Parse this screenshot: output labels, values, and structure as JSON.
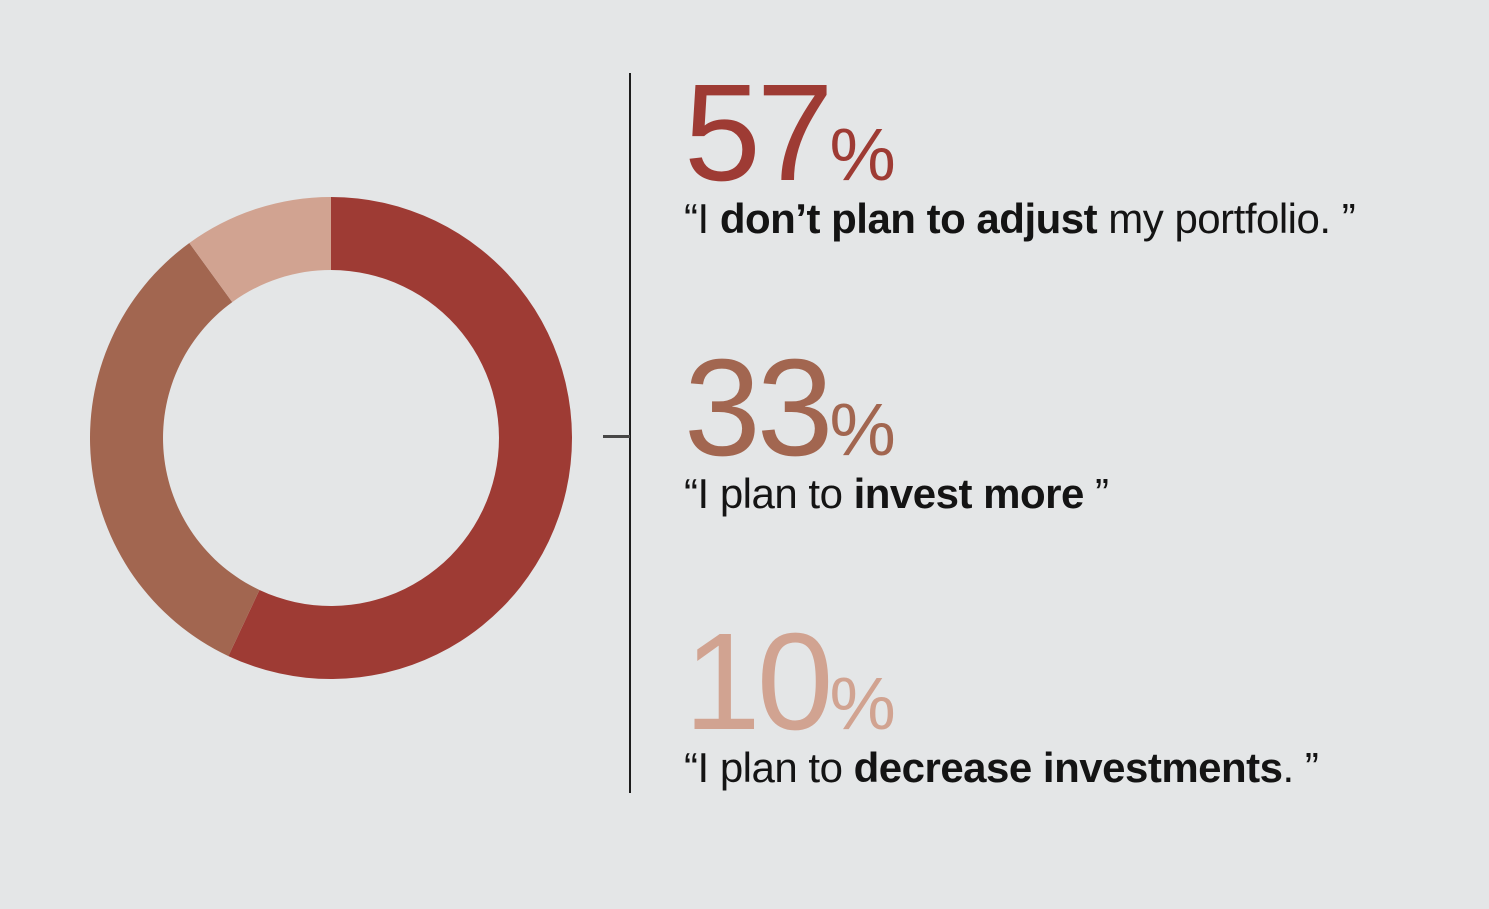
{
  "background_color": "#e4e6e7",
  "divider": {
    "line_color": "#1d1d1d",
    "tick_color": "#474747"
  },
  "chart_data": {
    "type": "pie",
    "subtype": "donut",
    "values": [
      57,
      33,
      10
    ],
    "labels": [
      "“I don’t plan to adjust my portfolio. ”",
      "“I plan to invest more ”",
      "“I plan to decrease investments. ”"
    ],
    "colors": [
      "#9e3b34",
      "#a26650",
      "#d1a391"
    ],
    "start_angle_deg": 0,
    "direction": "clockwise",
    "inner_radius_ratio": 0.697,
    "title": "",
    "legend_position": "right-callouts"
  },
  "stats": [
    {
      "value": "57",
      "percent_sign": "%",
      "color": "#9e3b34",
      "quote_prefix": "“I ",
      "quote_bold": "don’t plan to adjust",
      "quote_suffix": " my portfolio. ”"
    },
    {
      "value": "33",
      "percent_sign": "%",
      "color": "#a26650",
      "quote_prefix": "“I plan to ",
      "quote_bold": "invest more",
      "quote_suffix": " ”"
    },
    {
      "value": "10",
      "percent_sign": "%",
      "color": "#d1a391",
      "quote_prefix": "“I plan to ",
      "quote_bold": "decrease investments",
      "quote_suffix": ". ”"
    }
  ]
}
